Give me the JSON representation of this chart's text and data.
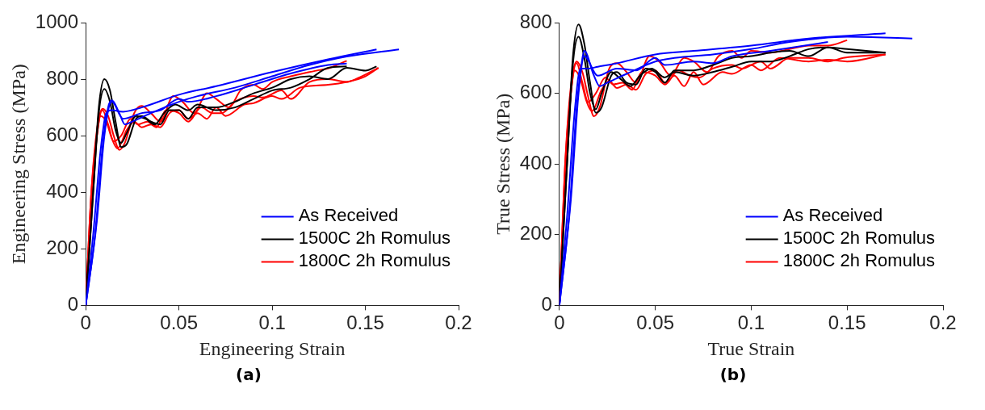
{
  "chart_data": [
    {
      "type": "line",
      "xlabel": "Engineering Strain",
      "ylabel": "Engineering Stress (MPa)",
      "annotations": [
        "(a)"
      ],
      "xlim": [
        0,
        0.2
      ],
      "xticks": [
        0,
        0.05,
        0.1,
        0.15,
        0.2
      ],
      "ylim": [
        0,
        1000
      ],
      "yticks": [
        0,
        200,
        400,
        600,
        800,
        1000
      ],
      "grid": false,
      "legend": "bottom right",
      "marker": "none",
      "line_style": "solid",
      "series": [
        {
          "name": "As Received",
          "color": "#0000ff",
          "x": [
            0,
            0.004,
            0.008,
            0.011,
            0.014,
            0.02,
            0.03,
            0.05,
            0.07,
            0.1,
            0.13,
            0.156
          ],
          "values": [
            0,
            250,
            550,
            680,
            690,
            685,
            700,
            745,
            775,
            825,
            870,
            905
          ]
        },
        {
          "color": "#0000ff",
          "x": [
            0,
            0.005,
            0.009,
            0.012,
            0.014,
            0.018,
            0.021,
            0.025,
            0.035,
            0.05,
            0.06,
            0.08,
            0.1,
            0.12,
            0.14,
            0.168
          ],
          "values": [
            0,
            250,
            560,
            700,
            725,
            680,
            640,
            650,
            680,
            720,
            740,
            770,
            810,
            850,
            880,
            905
          ]
        },
        {
          "color": "#0000ff",
          "x": [
            0,
            0.006,
            0.01,
            0.014,
            0.02,
            0.03,
            0.04,
            0.05,
            0.055,
            0.07,
            0.09,
            0.11,
            0.13,
            0.14
          ],
          "values": [
            0,
            300,
            600,
            720,
            660,
            680,
            690,
            730,
            720,
            740,
            780,
            820,
            850,
            855
          ]
        },
        {
          "name": "1500C 2h Romulus",
          "color": "#000000",
          "x": [
            0,
            0.004,
            0.007,
            0.01,
            0.013,
            0.016,
            0.019,
            0.022,
            0.027,
            0.03,
            0.035,
            0.04,
            0.045,
            0.05,
            0.055,
            0.06,
            0.07,
            0.08,
            0.09,
            0.1,
            0.11,
            0.12,
            0.13,
            0.14,
            0.15,
            0.156
          ],
          "values": [
            0,
            400,
            700,
            800,
            760,
            650,
            560,
            570,
            660,
            670,
            650,
            640,
            690,
            690,
            660,
            700,
            700,
            720,
            750,
            770,
            800,
            810,
            800,
            840,
            830,
            845
          ]
        },
        {
          "color": "#000000",
          "x": [
            0,
            0.004,
            0.007,
            0.01,
            0.013,
            0.016,
            0.019,
            0.022,
            0.027,
            0.032,
            0.037,
            0.042,
            0.048,
            0.055,
            0.06,
            0.07,
            0.08,
            0.09,
            0.1,
            0.11,
            0.12,
            0.13,
            0.14
          ],
          "values": [
            0,
            400,
            680,
            765,
            720,
            620,
            575,
            610,
            670,
            660,
            640,
            680,
            710,
            690,
            710,
            690,
            700,
            730,
            760,
            770,
            800,
            840,
            845
          ]
        },
        {
          "name": "1800C 2h Romulus",
          "color": "#ff0000",
          "x": [
            0,
            0.003,
            0.006,
            0.009,
            0.012,
            0.015,
            0.018,
            0.021,
            0.026,
            0.03,
            0.035,
            0.04,
            0.047,
            0.052,
            0.058,
            0.065,
            0.07,
            0.077,
            0.083,
            0.09,
            0.095,
            0.1,
            0.11,
            0.12,
            0.125,
            0.13,
            0.14
          ],
          "values": [
            0,
            400,
            620,
            695,
            670,
            600,
            550,
            575,
            680,
            705,
            680,
            650,
            740,
            720,
            680,
            750,
            730,
            700,
            760,
            780,
            765,
            790,
            810,
            825,
            832,
            838,
            865
          ]
        },
        {
          "color": "#ff0000",
          "x": [
            0,
            0.003,
            0.006,
            0.008,
            0.011,
            0.014,
            0.017,
            0.022,
            0.026,
            0.03,
            0.035,
            0.04,
            0.045,
            0.05,
            0.055,
            0.06,
            0.065,
            0.07,
            0.075,
            0.085,
            0.09,
            0.1,
            0.105,
            0.115,
            0.13,
            0.14,
            0.15,
            0.157
          ],
          "values": [
            0,
            400,
            600,
            670,
            650,
            590,
            555,
            620,
            650,
            630,
            640,
            630,
            680,
            690,
            660,
            680,
            660,
            700,
            670,
            710,
            715,
            740,
            730,
            770,
            780,
            790,
            810,
            840
          ]
        },
        {
          "color": "#ff0000",
          "x": [
            0,
            0.003,
            0.006,
            0.009,
            0.012,
            0.015,
            0.019,
            0.024,
            0.028,
            0.033,
            0.038,
            0.043,
            0.05,
            0.055,
            0.062,
            0.068,
            0.073,
            0.08,
            0.09,
            0.095,
            0.105,
            0.11,
            0.12,
            0.13,
            0.14,
            0.148,
            0.157
          ],
          "values": [
            0,
            350,
            600,
            690,
            640,
            580,
            600,
            660,
            640,
            650,
            630,
            690,
            680,
            650,
            700,
            680,
            680,
            720,
            740,
            735,
            760,
            730,
            790,
            800,
            790,
            810,
            840
          ]
        }
      ]
    },
    {
      "type": "line",
      "xlabel": "True Strain",
      "ylabel": "True Stress (MPa)",
      "annotations": [
        "(b)"
      ],
      "xlim": [
        0,
        0.2
      ],
      "xticks": [
        0,
        0.05,
        0.1,
        0.15,
        0.2
      ],
      "ylim": [
        0,
        800
      ],
      "yticks": [
        0,
        200,
        400,
        600,
        800
      ],
      "grid": false,
      "legend": "bottom right",
      "marker": "none",
      "line_style": "solid",
      "series": [
        {
          "name": "As Received",
          "color": "#0000ff",
          "x": [
            0,
            0.004,
            0.008,
            0.011,
            0.015,
            0.02,
            0.03,
            0.05,
            0.07,
            0.1,
            0.13,
            0.17
          ],
          "values": [
            0,
            250,
            550,
            670,
            670,
            675,
            685,
            710,
            720,
            735,
            755,
            770
          ]
        },
        {
          "color": "#0000ff",
          "x": [
            0,
            0.005,
            0.009,
            0.012,
            0.013,
            0.018,
            0.021,
            0.025,
            0.035,
            0.05,
            0.06,
            0.08,
            0.1,
            0.12,
            0.15,
            0.184
          ],
          "values": [
            0,
            250,
            560,
            700,
            720,
            650,
            620,
            630,
            655,
            690,
            700,
            710,
            725,
            745,
            760,
            755
          ]
        },
        {
          "color": "#0000ff",
          "x": [
            0,
            0.006,
            0.01,
            0.013,
            0.02,
            0.03,
            0.04,
            0.05,
            0.055,
            0.07,
            0.08,
            0.09,
            0.11,
            0.14
          ],
          "values": [
            0,
            300,
            600,
            705,
            650,
            670,
            665,
            700,
            680,
            690,
            685,
            705,
            720,
            745
          ]
        },
        {
          "name": "1500C 2h Romulus",
          "color": "#000000",
          "x": [
            0,
            0.004,
            0.007,
            0.01,
            0.013,
            0.016,
            0.019,
            0.022,
            0.027,
            0.03,
            0.035,
            0.04,
            0.045,
            0.05,
            0.055,
            0.06,
            0.07,
            0.08,
            0.09,
            0.1,
            0.11,
            0.12,
            0.13,
            0.14,
            0.15,
            0.17
          ],
          "values": [
            0,
            400,
            700,
            795,
            740,
            630,
            545,
            560,
            650,
            660,
            630,
            625,
            670,
            660,
            630,
            665,
            665,
            680,
            700,
            705,
            715,
            720,
            705,
            730,
            725,
            715
          ]
        },
        {
          "color": "#000000",
          "x": [
            0,
            0.004,
            0.007,
            0.01,
            0.013,
            0.016,
            0.019,
            0.022,
            0.027,
            0.032,
            0.037,
            0.042,
            0.048,
            0.055,
            0.06,
            0.07,
            0.08,
            0.09,
            0.1,
            0.11,
            0.12,
            0.13,
            0.14,
            0.15,
            0.17
          ],
          "values": [
            0,
            400,
            680,
            760,
            700,
            600,
            555,
            600,
            660,
            640,
            620,
            650,
            670,
            645,
            660,
            650,
            660,
            675,
            690,
            690,
            705,
            725,
            730,
            715,
            715
          ]
        },
        {
          "name": "1800C 2h Romulus",
          "color": "#ff0000",
          "x": [
            0,
            0.003,
            0.006,
            0.009,
            0.012,
            0.015,
            0.018,
            0.021,
            0.026,
            0.03,
            0.035,
            0.04,
            0.047,
            0.052,
            0.058,
            0.065,
            0.07,
            0.077,
            0.083,
            0.09,
            0.095,
            0.1,
            0.11,
            0.12,
            0.13,
            0.14,
            0.15
          ],
          "values": [
            0,
            400,
            620,
            690,
            660,
            590,
            535,
            560,
            670,
            685,
            660,
            630,
            705,
            690,
            650,
            700,
            690,
            660,
            705,
            720,
            700,
            720,
            715,
            725,
            735,
            735,
            750
          ]
        },
        {
          "color": "#ff0000",
          "x": [
            0,
            0.003,
            0.006,
            0.008,
            0.011,
            0.014,
            0.017,
            0.022,
            0.026,
            0.03,
            0.035,
            0.04,
            0.045,
            0.05,
            0.055,
            0.06,
            0.065,
            0.07,
            0.075,
            0.085,
            0.09,
            0.1,
            0.105,
            0.115,
            0.13,
            0.14,
            0.15,
            0.17
          ],
          "values": [
            0,
            400,
            600,
            665,
            640,
            580,
            550,
            610,
            635,
            615,
            625,
            610,
            655,
            665,
            630,
            650,
            620,
            660,
            625,
            660,
            655,
            680,
            665,
            700,
            690,
            695,
            690,
            710
          ]
        },
        {
          "color": "#ff0000",
          "x": [
            0,
            0.003,
            0.006,
            0.009,
            0.012,
            0.015,
            0.019,
            0.024,
            0.028,
            0.033,
            0.038,
            0.043,
            0.05,
            0.055,
            0.062,
            0.068,
            0.073,
            0.08,
            0.09,
            0.095,
            0.105,
            0.11,
            0.12,
            0.13,
            0.14,
            0.148,
            0.17
          ],
          "values": [
            0,
            350,
            600,
            685,
            630,
            575,
            600,
            645,
            625,
            630,
            610,
            660,
            650,
            625,
            665,
            650,
            645,
            670,
            680,
            670,
            690,
            670,
            700,
            700,
            690,
            700,
            710
          ]
        }
      ]
    }
  ]
}
